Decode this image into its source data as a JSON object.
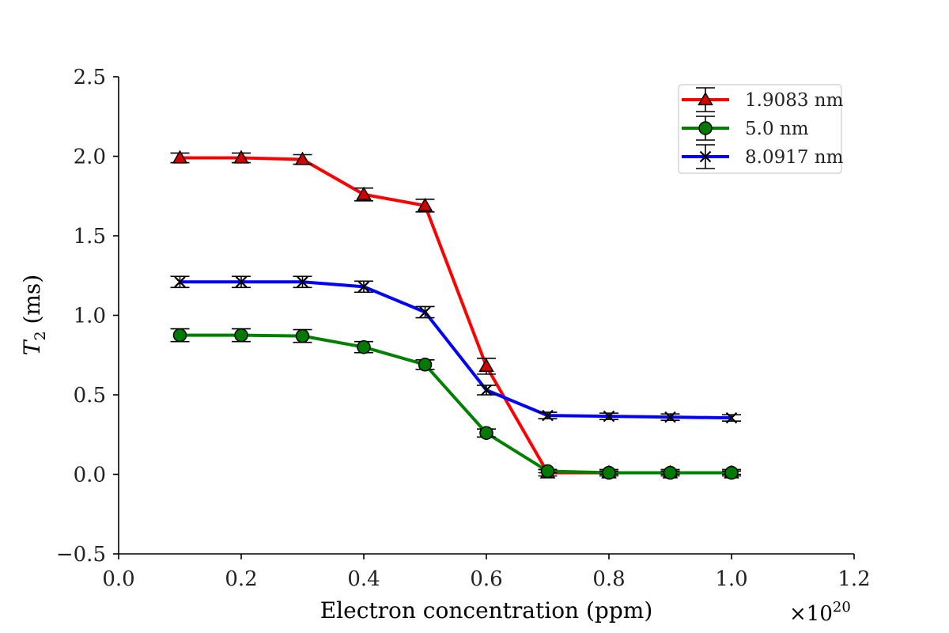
{
  "chart_data": {
    "type": "line",
    "x": [
      0.1,
      0.2,
      0.3,
      0.4,
      0.5,
      0.6,
      0.7,
      0.8,
      0.9,
      1.0
    ],
    "x_multiplier_label": "×10",
    "x_multiplier_exp": "20",
    "xlabel": "Electron concentration (ppm)",
    "ylabel_main": "T",
    "ylabel_sub": "2",
    "ylabel_rest": " (ms)",
    "xlim": [
      0.0,
      1.2
    ],
    "ylim": [
      -0.5,
      2.5
    ],
    "xticks": [
      "0.0",
      "0.2",
      "0.4",
      "0.6",
      "0.8",
      "1.0",
      "1.2"
    ],
    "xtick_values": [
      0.0,
      0.2,
      0.4,
      0.6,
      0.8,
      1.0,
      1.2
    ],
    "yticks": [
      "−0.5",
      "0.0",
      "0.5",
      "1.0",
      "1.5",
      "2.0",
      "2.5"
    ],
    "ytick_values": [
      -0.5,
      0.0,
      0.5,
      1.0,
      1.5,
      2.0,
      2.5
    ],
    "grid": false,
    "legend_position": "top-right",
    "series": [
      {
        "name": "1.9083 nm",
        "color": "#ff0000",
        "marker": "triangle",
        "marker_fill": "#d40000",
        "values": [
          1.99,
          1.99,
          1.98,
          1.76,
          1.69,
          0.68,
          0.01,
          0.01,
          0.01,
          0.01
        ],
        "errors": [
          0.03,
          0.03,
          0.03,
          0.04,
          0.04,
          0.05,
          0.02,
          0.02,
          0.02,
          0.02
        ]
      },
      {
        "name": "5.0 nm",
        "color": "#008000",
        "marker": "circle",
        "marker_fill": "#007a00",
        "values": [
          0.875,
          0.875,
          0.87,
          0.8,
          0.69,
          0.26,
          0.02,
          0.01,
          0.01,
          0.01
        ],
        "errors": [
          0.04,
          0.04,
          0.04,
          0.035,
          0.03,
          0.025,
          0.01,
          0.01,
          0.01,
          0.01
        ]
      },
      {
        "name": "8.0917 nm",
        "color": "#0000ff",
        "marker": "x",
        "marker_fill": "#000000",
        "values": [
          1.21,
          1.21,
          1.21,
          1.18,
          1.02,
          0.53,
          0.37,
          0.365,
          0.36,
          0.355
        ],
        "errors": [
          0.035,
          0.035,
          0.035,
          0.035,
          0.035,
          0.03,
          0.02,
          0.02,
          0.02,
          0.02
        ]
      }
    ]
  }
}
